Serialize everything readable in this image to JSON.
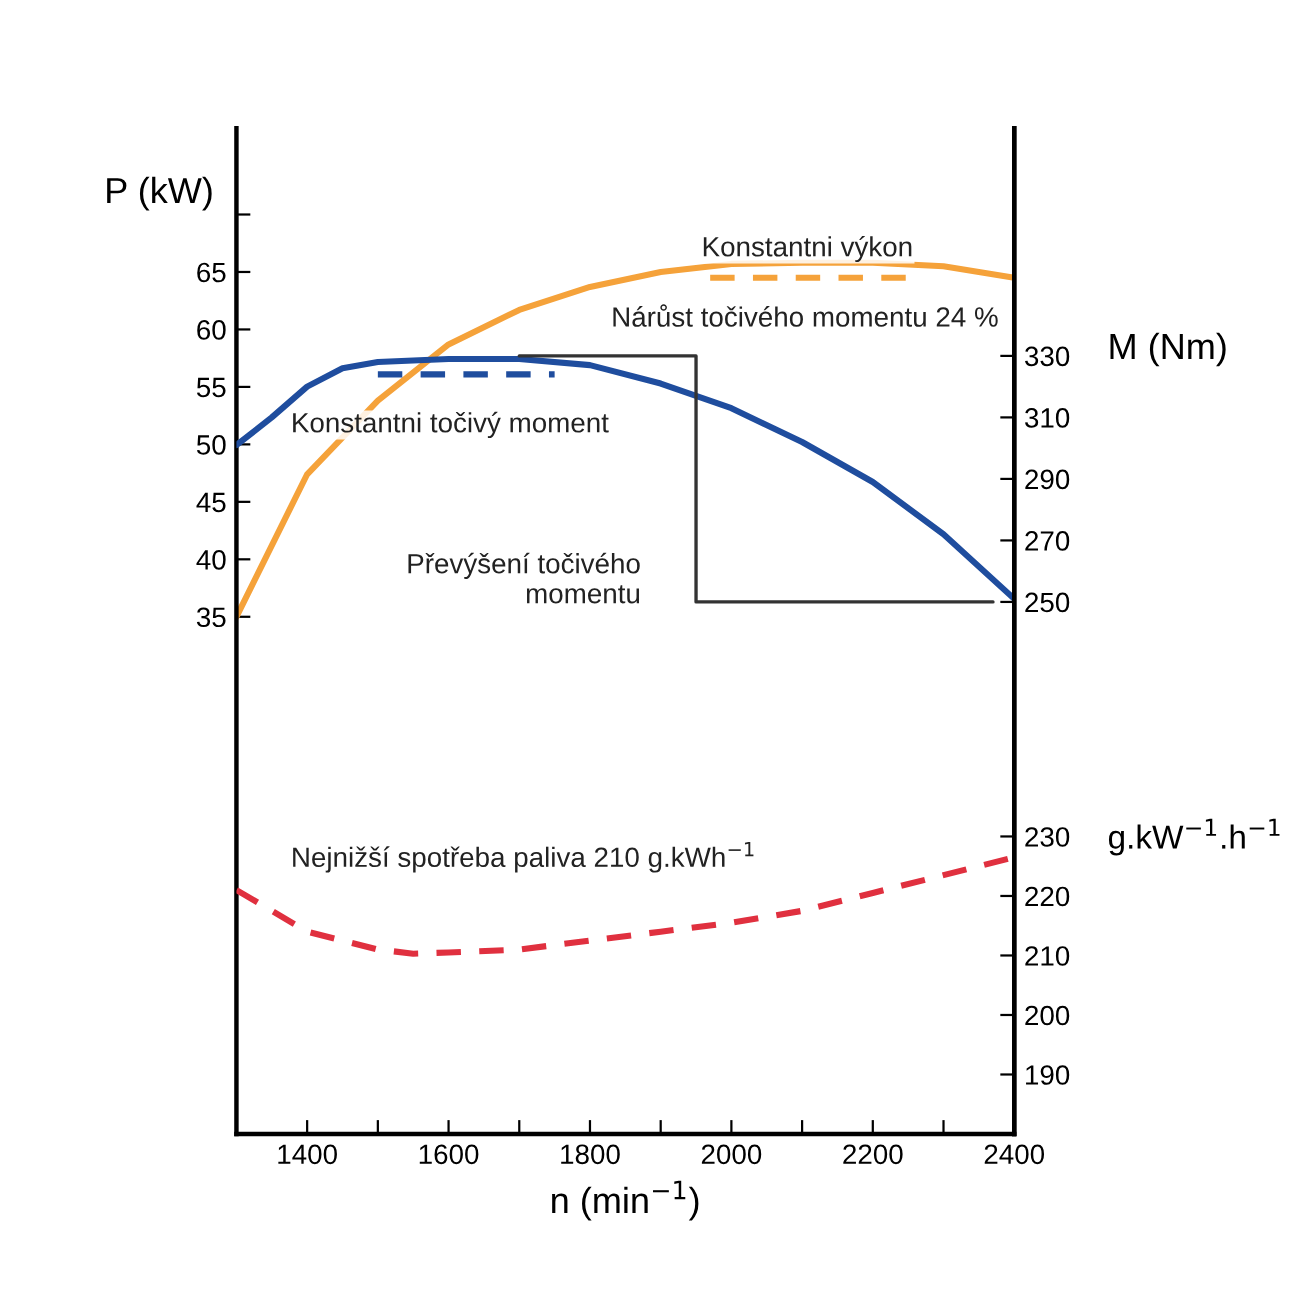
{
  "chart_data": {
    "type": "line",
    "xlabel": "n (min$^{−1}$)",
    "ylabel": "P (kW)",
    "y2label": "M (Nm)",
    "y3label": "g.kW$^{−1}$.h$^{−1}$",
    "xlim": [
      1300,
      2400
    ],
    "xticks": [
      1400,
      {
        "value": 1500,
        "label": null
      },
      1600,
      {
        "value": 1700,
        "label": null
      },
      1800,
      {
        "value": 1900,
        "label": null
      },
      2000,
      {
        "value": 2100,
        "label": null
      },
      2200,
      {
        "value": 2300,
        "label": null
      },
      2400
    ],
    "ylim": [
      -10,
      77.5
    ],
    "yticks": [
      35,
      40,
      45,
      50,
      55,
      60,
      65,
      {
        "value": 70,
        "label": null
      }
    ],
    "y2lim": [
      77,
      404
    ],
    "y2ticks": [
      250,
      270,
      290,
      310,
      330
    ],
    "y3lim": [
      180,
      349
    ],
    "y3ticks": [
      190,
      200,
      210,
      220,
      230
    ],
    "grid": false,
    "legend": false,
    "marker": "none",
    "series": [
      {
        "color": "#f5a23a",
        "axis": "y",
        "line_style": "solid",
        "x": [
          1300,
          1400,
          1500,
          1600,
          1700,
          1800,
          1900,
          2000,
          2100,
          2200,
          2300,
          2400
        ],
        "values": [
          35,
          47.4,
          53.8,
          58.7,
          61.7,
          63.7,
          65,
          65.7,
          65.8,
          65.8,
          65.5,
          64.5
        ]
      },
      {
        "color": "#f5a23a",
        "axis": "y",
        "line_style": "dashed",
        "x": [
          1970,
          2250
        ],
        "values": [
          64.5,
          64.5
        ]
      },
      {
        "color": "#1f4d9e",
        "axis": "y2",
        "line_style": "solid",
        "x": [
          1300,
          1350,
          1400,
          1450,
          1500,
          1600,
          1700,
          1800,
          1900,
          2000,
          2100,
          2200,
          2300,
          2400
        ],
        "values": [
          301,
          310,
          320,
          326,
          328,
          329,
          329,
          327,
          321,
          313,
          302,
          289,
          272,
          251
        ]
      },
      {
        "color": "#1f4d9e",
        "axis": "y2",
        "line_style": "dashed",
        "x": [
          1500,
          1750
        ],
        "values": [
          324,
          324
        ]
      },
      {
        "color": "#333333",
        "axis": "y2",
        "line_style": "solid",
        "x": [
          1700,
          1950,
          1950,
          2370
        ],
        "values": [
          330,
          330,
          250,
          250
        ]
      },
      {
        "color": "#e0303f",
        "axis": "y3",
        "line_style": "dashed",
        "x": [
          1300,
          1400,
          1500,
          1550,
          1600,
          1700,
          1800,
          1900,
          2000,
          2100,
          2200,
          2300,
          2400
        ],
        "values": [
          221,
          214,
          211,
          210.3,
          210.5,
          211,
          212.5,
          214,
          215.5,
          217.5,
          220.5,
          223.5,
          226.5
        ]
      }
    ],
    "annotations": [
      "Konstantni výkon",
      "Nárůst točivého momentu 24 %",
      "Konstantni točivý moment",
      "Převýšení točivého\nmomentu",
      "Nejnižší spotřeba paliva 210 g.kWh$^{−1}$"
    ]
  }
}
